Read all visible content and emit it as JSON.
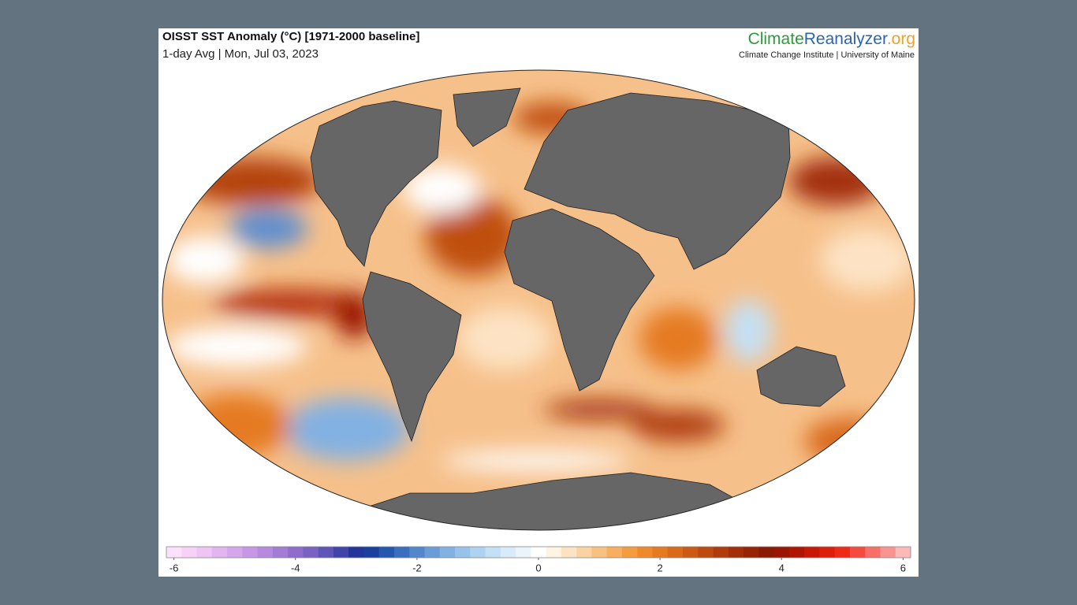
{
  "header": {
    "title": "OISST SST Anomaly (°C) [1971-2000 baseline]",
    "subtitle": "1-day Avg | Mon, Jul 03, 2023",
    "brand_a": "Climate",
    "brand_b": "Reanalyzer",
    "brand_c": ".org",
    "brand_sub": "Climate Change Institute | University of Maine"
  },
  "colorbar": {
    "lim": [
      -6.125,
      6.125
    ],
    "ticks": [
      -6,
      -4,
      -2,
      0,
      2,
      4,
      6
    ],
    "colors": [
      "#fde0fb",
      "#f6d2f7",
      "#eec4f3",
      "#e2b4f0",
      "#d6a6ec",
      "#c797e6",
      "#b78ade",
      "#a37cd6",
      "#8f6dcc",
      "#7a62c4",
      "#5f55b8",
      "#3f45aa",
      "#22359a",
      "#1b3f9c",
      "#2457ae",
      "#3a6fc0",
      "#5287cc",
      "#6a9dd8",
      "#82b1e2",
      "#98c2ea",
      "#aed2f0",
      "#c4e0f5",
      "#d8ebf8",
      "#eaf4fb",
      "#ffffff",
      "#fff3e4",
      "#fde3c4",
      "#fbd2a2",
      "#f9c181",
      "#f7ae5f",
      "#f49c40",
      "#ef8a2c",
      "#e57a20",
      "#d96a1a",
      "#cc5a14",
      "#be4a10",
      "#b03c0c",
      "#a22f08",
      "#962405",
      "#8c1a03",
      "#9a1502",
      "#b01503",
      "#c81806",
      "#de1e0c",
      "#ee2a18",
      "#f54a3e",
      "#f76f68",
      "#f99491",
      "#fbb9b7"
    ]
  }
}
